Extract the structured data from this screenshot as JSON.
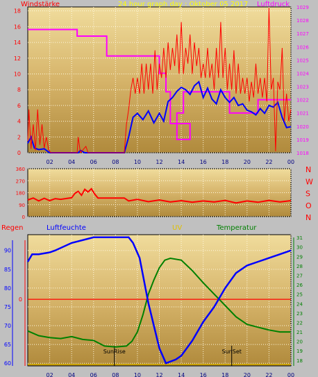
{
  "chart_data": [
    {
      "type": "line",
      "title": "24 hour graph day : Oktober 05 2017",
      "left_label": "Windstärke",
      "right_label": "Luftdruck",
      "x_ticks": [
        "02",
        "04",
        "06",
        "08",
        "10",
        "12",
        "14",
        "16",
        "18",
        "20",
        "22",
        "00"
      ],
      "y_left_ticks": [
        "0",
        "2",
        "4",
        "6",
        "8",
        "10",
        "12",
        "14",
        "16",
        "18"
      ],
      "y_left_range": [
        0,
        18.5
      ],
      "y_right_ticks": [
        "1018",
        "1019",
        "1020",
        "1021",
        "1022",
        "1023",
        "1024",
        "1025",
        "1026",
        "1027",
        "1028",
        "1029"
      ],
      "y_right_range": [
        1018,
        1029
      ],
      "colors": {
        "gust": "#ff0000",
        "wind": "#0000ff",
        "pressure": "#ff00ff"
      },
      "series": [
        {
          "key": "pressure",
          "axis": "right",
          "points": [
            [
              0,
              1027.3
            ],
            [
              4.5,
              1027.3
            ],
            [
              4.5,
              1026.8
            ],
            [
              7.2,
              1026.8
            ],
            [
              7.2,
              1025.3
            ],
            [
              12,
              1025.3
            ],
            [
              12,
              1024.0
            ],
            [
              12.6,
              1024.0
            ],
            [
              12.6,
              1022.6
            ],
            [
              13.0,
              1022.6
            ],
            [
              13.0,
              1020.2
            ],
            [
              14.8,
              1020.2
            ],
            [
              14.8,
              1019.0
            ],
            [
              13.6,
              1019.0
            ],
            [
              13.6,
              1021.0
            ],
            [
              14.2,
              1021.0
            ],
            [
              14.2,
              1022.6
            ],
            [
              18.4,
              1022.6
            ],
            [
              18.4,
              1021.0
            ],
            [
              21,
              1021.0
            ],
            [
              21,
              1022.0
            ],
            [
              24,
              1022.0
            ]
          ]
        },
        {
          "key": "wind",
          "axis": "left",
          "points": [
            [
              0,
              1.2
            ],
            [
              0.3,
              2.0
            ],
            [
              0.6,
              0.6
            ],
            [
              1.0,
              0.4
            ],
            [
              1.5,
              0.5
            ],
            [
              2,
              0
            ],
            [
              4.6,
              0
            ],
            [
              4.8,
              0.3
            ],
            [
              5.2,
              0
            ],
            [
              8.8,
              0
            ],
            [
              9.2,
              2.0
            ],
            [
              9.6,
              4.5
            ],
            [
              10.0,
              5.0
            ],
            [
              10.5,
              4.2
            ],
            [
              11.0,
              5.3
            ],
            [
              11.5,
              3.8
            ],
            [
              12.0,
              5.0
            ],
            [
              12.4,
              4.0
            ],
            [
              12.8,
              6.5
            ],
            [
              13.2,
              7.0
            ],
            [
              13.6,
              7.8
            ],
            [
              14.0,
              8.3
            ],
            [
              14.4,
              8.0
            ],
            [
              14.8,
              7.4
            ],
            [
              15.2,
              8.5
            ],
            [
              15.6,
              9.0
            ],
            [
              16.0,
              7.0
            ],
            [
              16.4,
              8.2
            ],
            [
              16.8,
              6.8
            ],
            [
              17.2,
              6.2
            ],
            [
              17.6,
              8.0
            ],
            [
              18.0,
              7.0
            ],
            [
              18.4,
              6.4
            ],
            [
              18.8,
              7.0
            ],
            [
              19.2,
              6.0
            ],
            [
              19.6,
              6.2
            ],
            [
              20.0,
              5.4
            ],
            [
              20.4,
              5.2
            ],
            [
              20.8,
              4.8
            ],
            [
              21.2,
              5.6
            ],
            [
              21.6,
              5.0
            ],
            [
              22.0,
              6.0
            ],
            [
              22.4,
              5.8
            ],
            [
              22.8,
              6.4
            ],
            [
              23.2,
              4.5
            ],
            [
              23.6,
              3.2
            ],
            [
              24,
              3.3
            ]
          ]
        },
        {
          "key": "gust",
          "axis": "left",
          "points": [
            [
              0,
              1.5
            ],
            [
              0.1,
              5.5
            ],
            [
              0.3,
              0.5
            ],
            [
              0.5,
              3.6
            ],
            [
              0.7,
              0.3
            ],
            [
              0.9,
              5.5
            ],
            [
              1.1,
              1.0
            ],
            [
              1.3,
              3.6
            ],
            [
              1.5,
              0.6
            ],
            [
              1.7,
              2.0
            ],
            [
              1.9,
              0.4
            ],
            [
              2.1,
              0
            ],
            [
              4.5,
              0
            ],
            [
              4.6,
              2.0
            ],
            [
              4.8,
              0
            ],
            [
              5.3,
              0.8
            ],
            [
              5.5,
              0
            ],
            [
              8.8,
              0
            ],
            [
              9.0,
              3.6
            ],
            [
              9.2,
              5.5
            ],
            [
              9.4,
              8.0
            ],
            [
              9.6,
              9.5
            ],
            [
              9.8,
              7.5
            ],
            [
              10.0,
              9.5
            ],
            [
              10.2,
              7.5
            ],
            [
              10.4,
              11.3
            ],
            [
              10.6,
              7.5
            ],
            [
              10.8,
              11.3
            ],
            [
              11.0,
              8.0
            ],
            [
              11.2,
              11.3
            ],
            [
              11.4,
              7.5
            ],
            [
              11.6,
              13.0
            ],
            [
              11.8,
              8.0
            ],
            [
              12.0,
              11.3
            ],
            [
              12.2,
              9.5
            ],
            [
              12.4,
              13.3
            ],
            [
              12.6,
              9.5
            ],
            [
              12.8,
              14.0
            ],
            [
              13.0,
              10.5
            ],
            [
              13.2,
              13.3
            ],
            [
              13.4,
              11.0
            ],
            [
              13.6,
              15.0
            ],
            [
              13.8,
              10.0
            ],
            [
              14.0,
              16.6
            ],
            [
              14.2,
              10.0
            ],
            [
              14.4,
              13.3
            ],
            [
              14.6,
              11.3
            ],
            [
              14.8,
              15.0
            ],
            [
              15.0,
              10.0
            ],
            [
              15.2,
              14.0
            ],
            [
              15.4,
              11.0
            ],
            [
              15.6,
              13.3
            ],
            [
              15.8,
              9.5
            ],
            [
              16.0,
              11.3
            ],
            [
              16.2,
              9.5
            ],
            [
              16.4,
              13.3
            ],
            [
              16.6,
              9.5
            ],
            [
              16.8,
              11.3
            ],
            [
              17.0,
              8.0
            ],
            [
              17.2,
              13.3
            ],
            [
              17.4,
              9.5
            ],
            [
              17.6,
              16.6
            ],
            [
              17.8,
              9.5
            ],
            [
              18.0,
              13.3
            ],
            [
              18.2,
              8.0
            ],
            [
              18.4,
              11.3
            ],
            [
              18.6,
              8.0
            ],
            [
              18.8,
              13.0
            ],
            [
              19.0,
              7.5
            ],
            [
              19.2,
              11.3
            ],
            [
              19.4,
              7.5
            ],
            [
              19.6,
              9.5
            ],
            [
              19.8,
              7.5
            ],
            [
              20.0,
              9.5
            ],
            [
              20.2,
              6.5
            ],
            [
              20.4,
              9.0
            ],
            [
              20.6,
              7.0
            ],
            [
              20.8,
              11.3
            ],
            [
              21.0,
              7.5
            ],
            [
              21.2,
              9.5
            ],
            [
              21.4,
              7.0
            ],
            [
              21.6,
              9.5
            ],
            [
              21.8,
              6.5
            ],
            [
              22.0,
              18.4
            ],
            [
              22.2,
              8.0
            ],
            [
              22.4,
              9.5
            ],
            [
              22.6,
              0.2
            ],
            [
              22.8,
              9.0
            ],
            [
              23.0,
              8.0
            ],
            [
              23.2,
              13.3
            ],
            [
              23.4,
              4.0
            ],
            [
              23.6,
              7.5
            ],
            [
              23.8,
              4.0
            ],
            [
              24,
              5.5
            ]
          ]
        }
      ]
    },
    {
      "type": "line",
      "axis_range": [
        0,
        360
      ],
      "y_ticks": [
        "360",
        "270",
        "180",
        "90",
        "0"
      ],
      "compass_labels": [
        "N",
        "W",
        "S",
        "O",
        "N"
      ],
      "color": "#ff0000",
      "points": [
        [
          0,
          125
        ],
        [
          0.5,
          140
        ],
        [
          1,
          118
        ],
        [
          1.5,
          138
        ],
        [
          2,
          120
        ],
        [
          2.5,
          135
        ],
        [
          3,
          130
        ],
        [
          4,
          142
        ],
        [
          4.3,
          175
        ],
        [
          4.6,
          190
        ],
        [
          4.9,
          160
        ],
        [
          5.2,
          205
        ],
        [
          5.5,
          185
        ],
        [
          5.8,
          210
        ],
        [
          6.1,
          170
        ],
        [
          6.4,
          140
        ],
        [
          8.8,
          140
        ],
        [
          9.2,
          118
        ],
        [
          10,
          130
        ],
        [
          11,
          112
        ],
        [
          12,
          125
        ],
        [
          13,
          110
        ],
        [
          14,
          120
        ],
        [
          15,
          108
        ],
        [
          16,
          118
        ],
        [
          17,
          110
        ],
        [
          18,
          122
        ],
        [
          19,
          102
        ],
        [
          20,
          118
        ],
        [
          21,
          108
        ],
        [
          22,
          122
        ],
        [
          23,
          110
        ],
        [
          24,
          120
        ]
      ]
    },
    {
      "type": "line",
      "title_labels": {
        "regen": "Regen",
        "luftfeuchte": "Luftfeuchte",
        "uv": "UV",
        "temperatur": "Temperatur"
      },
      "x_ticks": [
        "02",
        "04",
        "06",
        "08",
        "10",
        "12",
        "14",
        "16",
        "18",
        "20",
        "22",
        "00"
      ],
      "y_left_ticks": [
        "60",
        "65",
        "70",
        "75",
        "80",
        "85",
        "90"
      ],
      "y_left_range": [
        59.3,
        94.2
      ],
      "y_right_ticks": [
        "18",
        "19",
        "20",
        "21",
        "22",
        "23",
        "24",
        "25",
        "26",
        "27",
        "28",
        "29",
        "30",
        "31"
      ],
      "y_right_range": [
        17.4,
        31.3
      ],
      "regen_label": "0",
      "sunrise_label": "SunRise",
      "sunset_label": "SunSet",
      "sunrise_hour": 7.9,
      "sunset_hour": 18.6,
      "colors": {
        "humidity": "#0000ff",
        "temperature": "#008000",
        "rain": "#ff0000",
        "uv": "#c8a000"
      },
      "humidity": [
        [
          0,
          87
        ],
        [
          0.4,
          89
        ],
        [
          1,
          89
        ],
        [
          2,
          89.5
        ],
        [
          2.5,
          90
        ],
        [
          4,
          92
        ],
        [
          6,
          93.5
        ],
        [
          9.2,
          93.5
        ],
        [
          9.6,
          92
        ],
        [
          10.2,
          88
        ],
        [
          10.6,
          82
        ],
        [
          11,
          76
        ],
        [
          11.5,
          70
        ],
        [
          12,
          64
        ],
        [
          12.6,
          60
        ],
        [
          13.5,
          61
        ],
        [
          14,
          62
        ],
        [
          15,
          66
        ],
        [
          16,
          71
        ],
        [
          17,
          75
        ],
        [
          18,
          80
        ],
        [
          19,
          84
        ],
        [
          20,
          86
        ],
        [
          21,
          87
        ],
        [
          22,
          88
        ],
        [
          23,
          89
        ],
        [
          24,
          90
        ]
      ],
      "temperature": [
        [
          0,
          21.1
        ],
        [
          1,
          20.6
        ],
        [
          2,
          20.4
        ],
        [
          3,
          20.3
        ],
        [
          4,
          20.5
        ],
        [
          5,
          20.2
        ],
        [
          6,
          20.1
        ],
        [
          7,
          19.5
        ],
        [
          8,
          19.4
        ],
        [
          9,
          19.5
        ],
        [
          9.5,
          20.0
        ],
        [
          10,
          21.0
        ],
        [
          10.5,
          22.8
        ],
        [
          11,
          25.0
        ],
        [
          11.5,
          26.5
        ],
        [
          12,
          27.8
        ],
        [
          12.5,
          28.6
        ],
        [
          13,
          28.8
        ],
        [
          14,
          28.6
        ],
        [
          15,
          27.5
        ],
        [
          16,
          26.2
        ],
        [
          17,
          25.0
        ],
        [
          18,
          23.8
        ],
        [
          19,
          22.6
        ],
        [
          20,
          21.8
        ],
        [
          21,
          21.5
        ],
        [
          22,
          21.2
        ],
        [
          23,
          21.0
        ],
        [
          24,
          21.0
        ]
      ]
    }
  ]
}
